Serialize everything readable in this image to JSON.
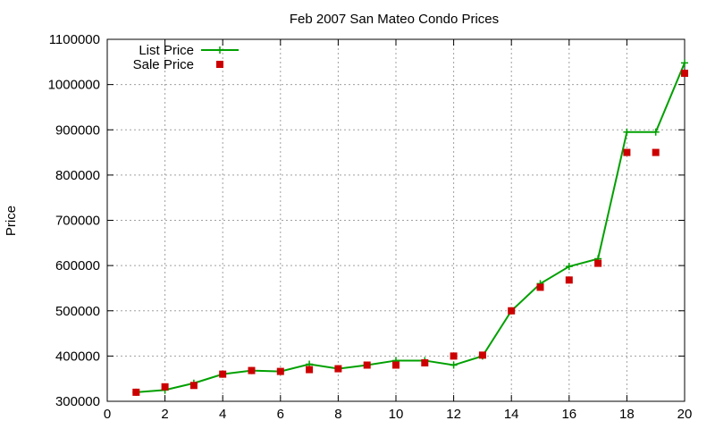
{
  "chart_data": {
    "type": "line",
    "title": "Feb 2007 San Mateo Condo Prices",
    "xlabel": "",
    "ylabel": "Price",
    "xlim": [
      0,
      20
    ],
    "ylim": [
      300000,
      1100000
    ],
    "xticks": [
      0,
      2,
      4,
      6,
      8,
      10,
      12,
      14,
      16,
      18,
      20
    ],
    "yticks": [
      300000,
      400000,
      500000,
      600000,
      700000,
      800000,
      900000,
      1000000,
      1100000
    ],
    "grid": true,
    "legend_position": "top-left",
    "series": [
      {
        "name": "List Price",
        "style": "line+cross",
        "color": "#00a000",
        "x": [
          1,
          2,
          3,
          4,
          5,
          6,
          7,
          8,
          9,
          10,
          11,
          12,
          13,
          14,
          15,
          16,
          17,
          18,
          19,
          20
        ],
        "y": [
          320000,
          325000,
          340000,
          360000,
          368000,
          366000,
          382000,
          372000,
          380000,
          390000,
          390000,
          380000,
          400000,
          500000,
          560000,
          598000,
          615000,
          895000,
          895000,
          1048000
        ]
      },
      {
        "name": "Sale Price",
        "style": "square",
        "color": "#cc0000",
        "x": [
          1,
          2,
          3,
          4,
          5,
          6,
          7,
          8,
          9,
          10,
          11,
          12,
          13,
          14,
          15,
          16,
          17,
          18,
          19,
          20
        ],
        "y": [
          320000,
          332000,
          335000,
          360000,
          368000,
          366000,
          370000,
          372000,
          380000,
          380000,
          385000,
          400000,
          402000,
          500000,
          552000,
          568000,
          605000,
          850000,
          850000,
          1025000
        ]
      }
    ]
  }
}
